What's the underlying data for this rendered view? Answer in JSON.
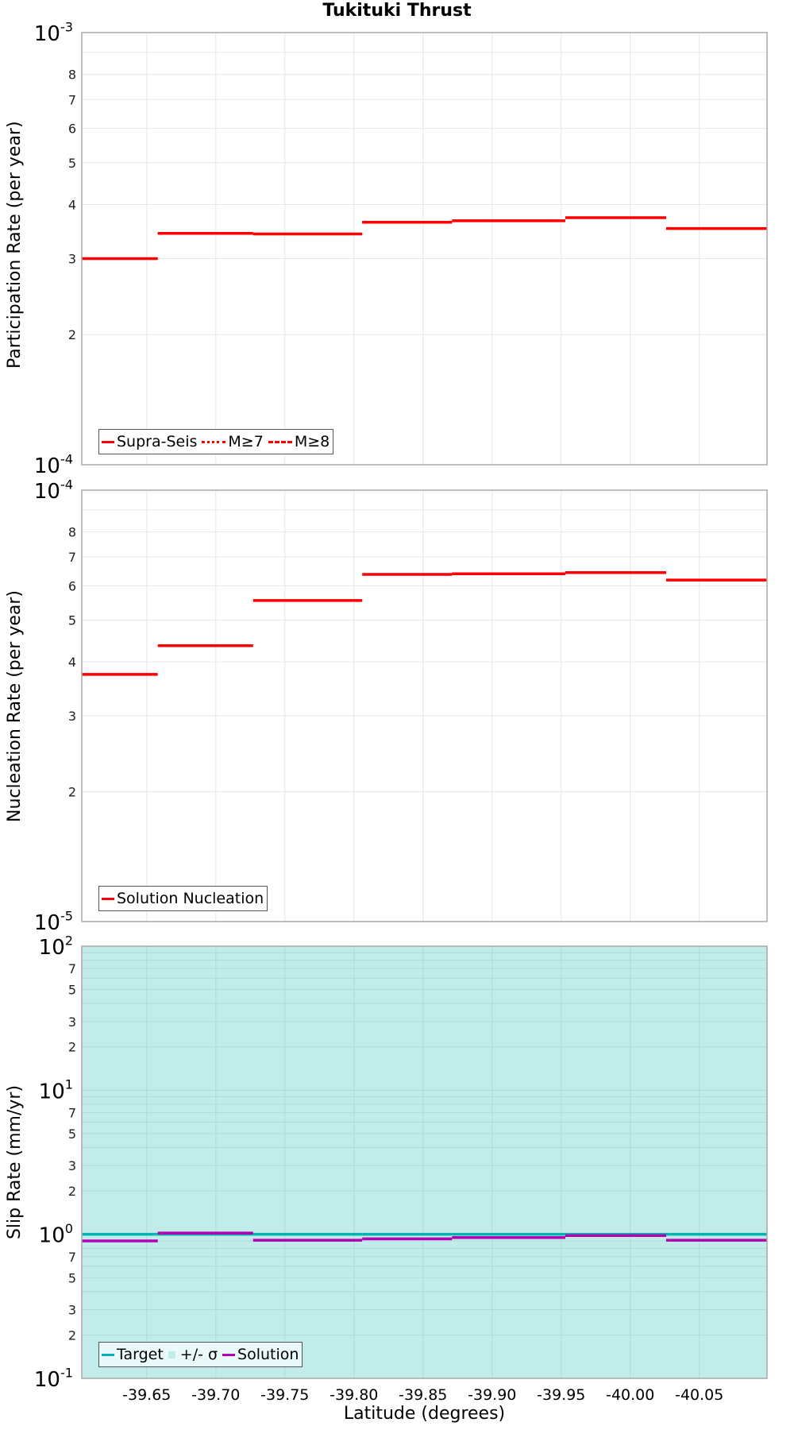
{
  "title": "Tukituki Thrust",
  "xlabel": "Latitude (degrees)",
  "colors": {
    "red": "#ff0000",
    "target": "#00b2b2",
    "band": "#c2ecea",
    "solution": "#b200b2",
    "grid": "#e6e6e6",
    "grid_shaded": "#aedad8",
    "frame": "#a8a8a8"
  },
  "chart_data": [
    {
      "type": "line",
      "subtype": "step",
      "title": "Tukituki Thrust",
      "xlabel": "",
      "ylabel": "Participation Rate (per year)",
      "yscale": "log",
      "ylim": [
        0.0001,
        0.001
      ],
      "xlim": [
        -39.603,
        -40.099
      ],
      "x_reversed": true,
      "grid": true,
      "legend_position": "lower left",
      "legend": [
        "Supra-Seis",
        "M≥7",
        "M≥8"
      ],
      "x_bins": [
        -39.603,
        -39.658,
        -39.727,
        -39.806,
        -39.871,
        -39.953,
        -40.026,
        -40.099
      ],
      "series": [
        {
          "name": "Supra-Seis",
          "style": "solid",
          "values": [
            0.0003,
            0.000343,
            0.000342,
            0.000364,
            0.000367,
            0.000373,
            0.000352
          ]
        },
        {
          "name": "M≥7",
          "style": "dotted",
          "values": [
            0.0003,
            0.000343,
            0.000342,
            0.000364,
            0.000367,
            0.000373,
            0.000352
          ]
        },
        {
          "name": "M≥8",
          "style": "dashdot",
          "values": [
            0.0003,
            0.000343,
            0.000342,
            0.000364,
            0.000367,
            0.000373,
            0.000352
          ]
        }
      ],
      "y_major_ticks": [
        "10^-3",
        "10^-4"
      ],
      "y_minor_tick_labels": [
        "8",
        "7",
        "6",
        "5",
        "4",
        "3",
        "2"
      ]
    },
    {
      "type": "line",
      "subtype": "step",
      "ylabel": "Nucleation Rate (per year)",
      "yscale": "log",
      "ylim": [
        1e-05,
        0.0001
      ],
      "xlim": [
        -39.603,
        -40.099
      ],
      "x_reversed": true,
      "grid": true,
      "legend_position": "lower left",
      "legend": [
        "Solution Nucleation"
      ],
      "x_bins": [
        -39.603,
        -39.658,
        -39.727,
        -39.806,
        -39.871,
        -39.953,
        -40.026,
        -40.099
      ],
      "series": [
        {
          "name": "Solution Nucleation",
          "style": "solid",
          "values": [
            3.74e-05,
            4.36e-05,
            5.55e-05,
            6.38e-05,
            6.4e-05,
            6.44e-05,
            6.19e-05
          ]
        }
      ],
      "y_major_ticks": [
        "10^-4",
        "10^-5"
      ],
      "y_minor_tick_labels": [
        "8",
        "7",
        "6",
        "5",
        "4",
        "3",
        "2"
      ]
    },
    {
      "type": "line",
      "subtype": "step",
      "ylabel": "Slip Rate (mm/yr)",
      "xlabel": "Latitude (degrees)",
      "yscale": "log",
      "ylim": [
        0.1,
        100
      ],
      "xlim": [
        -39.603,
        -40.099
      ],
      "x_reversed": true,
      "grid": true,
      "legend_position": "lower left",
      "legend": [
        "Target",
        "+/- σ",
        "Solution"
      ],
      "x_bins": [
        -39.603,
        -39.658,
        -39.727,
        -39.806,
        -39.871,
        -39.953,
        -40.026,
        -40.099
      ],
      "series": [
        {
          "name": "Target",
          "style": "solid",
          "values": [
            1.0,
            1.0,
            1.0,
            1.0,
            1.0,
            1.0,
            1.0
          ]
        },
        {
          "name": "+/- σ",
          "style": "band",
          "lower": 0.1,
          "upper": 100
        },
        {
          "name": "Solution",
          "style": "solid",
          "values": [
            0.9,
            1.02,
            0.91,
            0.93,
            0.95,
            0.98,
            0.91
          ]
        }
      ],
      "y_major_ticks": [
        "10^2",
        "10^1",
        "10^0",
        "10^-1"
      ],
      "y_minor_tick_labels": [
        "7",
        "5",
        "3",
        "2"
      ]
    }
  ],
  "x_ticks": [
    "-39.65",
    "-39.70",
    "-39.75",
    "-39.80",
    "-39.85",
    "-39.90",
    "-39.95",
    "-40.00",
    "-40.05"
  ],
  "x_tick_values": [
    -39.65,
    -39.7,
    -39.75,
    -39.8,
    -39.85,
    -39.9,
    -39.95,
    -40.0,
    -40.05
  ],
  "legends": {
    "participation": [
      "Supra-Seis",
      "M≥7",
      "M≥8"
    ],
    "nucleation": [
      "Solution Nucleation"
    ],
    "slip": [
      "Target",
      "+/- σ",
      "Solution"
    ]
  },
  "ylabels": {
    "participation": "Participation Rate (per year)",
    "nucleation": "Nucleation Rate (per year)",
    "slip": "Slip Rate (mm/yr)"
  }
}
